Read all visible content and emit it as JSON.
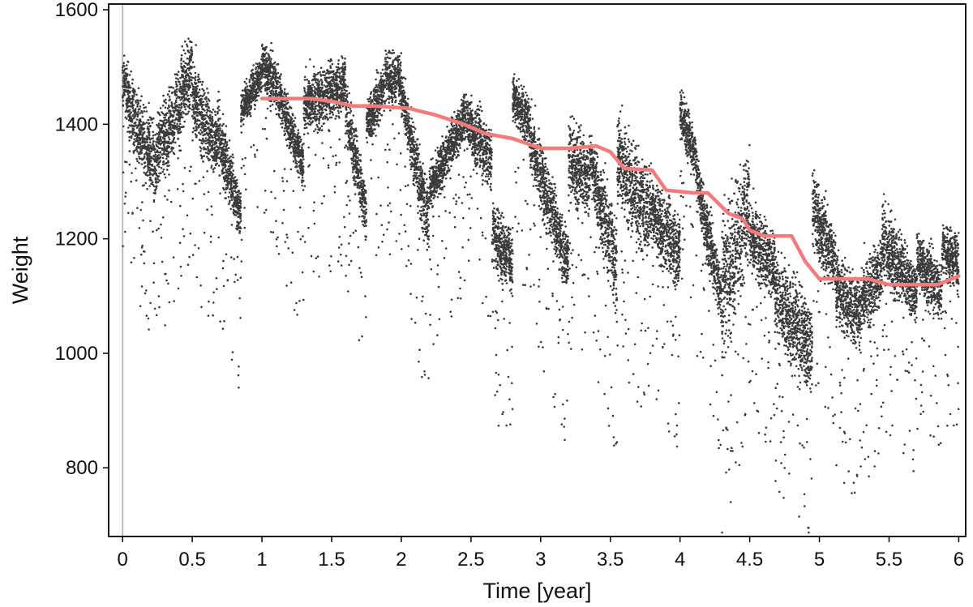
{
  "chart_data": {
    "type": "scatter",
    "title": "",
    "xlabel": "Time [year]",
    "ylabel": "Weight",
    "xlim": [
      -0.1,
      6.05
    ],
    "ylim": [
      680,
      1610
    ],
    "xticks": [
      0,
      0.5,
      1,
      1.5,
      2,
      2.5,
      3,
      3.5,
      4,
      4.5,
      5,
      5.5,
      6
    ],
    "xtick_labels": [
      "0",
      "0.5",
      "1",
      "1.5",
      "2",
      "2.5",
      "3",
      "3.5",
      "4",
      "4.5",
      "5",
      "5.5",
      "6"
    ],
    "yticks": [
      800,
      1000,
      1200,
      1400,
      1600
    ],
    "ytick_labels": [
      "800",
      "1000",
      "1200",
      "1400",
      "1600"
    ],
    "grid": false,
    "legend": "none",
    "reference_line_x": 0,
    "colors": {
      "points": "#3a3a3a",
      "trend": "#f47b7b",
      "reference": "#bbbbbb",
      "frame": "#000000"
    },
    "series": [
      {
        "kind": "scatter",
        "segments": [
          {
            "x": [
              0.0,
              0.07
            ],
            "top": [
              1550,
              1500
            ],
            "bottom": [
              1420,
              1320
            ]
          },
          {
            "x": [
              0.07,
              0.25
            ],
            "top": [
              1500,
              1420
            ],
            "bottom": [
              1320,
              1230
            ]
          },
          {
            "x": [
              0.25,
              0.42
            ],
            "top": [
              1450,
              1540
            ],
            "bottom": [
              1260,
              1330
            ]
          },
          {
            "x": [
              0.42,
              0.5
            ],
            "top": [
              1550,
              1580
            ],
            "bottom": [
              1350,
              1420
            ]
          },
          {
            "x": [
              0.5,
              0.68
            ],
            "top": [
              1560,
              1440
            ],
            "bottom": [
              1340,
              1280
            ]
          },
          {
            "x": [
              0.68,
              0.85
            ],
            "top": [
              1480,
              1310
            ],
            "bottom": [
              1300,
              1160
            ]
          },
          {
            "x": [
              0.85,
              1.0
            ],
            "top": [
              1470,
              1540
            ],
            "bottom": [
              1380,
              1440
            ]
          },
          {
            "x": [
              1.0,
              1.12
            ],
            "top": [
              1570,
              1530
            ],
            "bottom": [
              1440,
              1390
            ]
          },
          {
            "x": [
              1.12,
              1.3
            ],
            "top": [
              1510,
              1380
            ],
            "bottom": [
              1390,
              1270
            ]
          },
          {
            "x": [
              1.3,
              1.6
            ],
            "top": [
              1510,
              1550
            ],
            "bottom": [
              1360,
              1390
            ]
          },
          {
            "x": [
              1.6,
              1.75
            ],
            "top": [
              1500,
              1320
            ],
            "bottom": [
              1360,
              1160
            ]
          },
          {
            "x": [
              1.75,
              1.88
            ],
            "top": [
              1460,
              1530
            ],
            "bottom": [
              1340,
              1400
            ]
          },
          {
            "x": [
              1.88,
              2.0
            ],
            "top": [
              1560,
              1540
            ],
            "bottom": [
              1400,
              1420
            ]
          },
          {
            "x": [
              2.0,
              2.2
            ],
            "top": [
              1510,
              1320
            ],
            "bottom": [
              1400,
              1120
            ]
          },
          {
            "x": [
              2.2,
              2.45
            ],
            "top": [
              1340,
              1480
            ],
            "bottom": [
              1230,
              1340
            ]
          },
          {
            "x": [
              2.45,
              2.65
            ],
            "top": [
              1480,
              1420
            ],
            "bottom": [
              1350,
              1250
            ]
          },
          {
            "x": [
              2.65,
              2.8
            ],
            "top": [
              1300,
              1240
            ],
            "bottom": [
              1120,
              1080
            ]
          },
          {
            "x": [
              2.8,
              2.92
            ],
            "top": [
              1500,
              1470
            ],
            "bottom": [
              1390,
              1340
            ]
          },
          {
            "x": [
              2.92,
              3.2
            ],
            "top": [
              1470,
              1240
            ],
            "bottom": [
              1290,
              1060
            ]
          },
          {
            "x": [
              3.2,
              3.35
            ],
            "top": [
              1440,
              1400
            ],
            "bottom": [
              1240,
              1200
            ]
          },
          {
            "x": [
              3.35,
              3.55
            ],
            "top": [
              1420,
              1280
            ],
            "bottom": [
              1260,
              1020
            ]
          },
          {
            "x": [
              3.55,
              3.78
            ],
            "top": [
              1450,
              1360
            ],
            "bottom": [
              1230,
              1110
            ]
          },
          {
            "x": [
              3.78,
              4.0
            ],
            "top": [
              1350,
              1280
            ],
            "bottom": [
              1170,
              1060
            ]
          },
          {
            "x": [
              4.0,
              4.12
            ],
            "top": [
              1480,
              1400
            ],
            "bottom": [
              1370,
              1270
            ]
          },
          {
            "x": [
              4.12,
              4.3
            ],
            "top": [
              1380,
              1170
            ],
            "bottom": [
              1220,
              1020
            ]
          },
          {
            "x": [
              4.3,
              4.5
            ],
            "top": [
              1300,
              1400
            ],
            "bottom": [
              900,
              1130
            ]
          },
          {
            "x": [
              4.5,
              4.68
            ],
            "top": [
              1300,
              1240
            ],
            "bottom": [
              1120,
              1060
            ]
          },
          {
            "x": [
              4.68,
              4.95
            ],
            "top": [
              1210,
              1130
            ],
            "bottom": [
              1000,
              880
            ]
          },
          {
            "x": [
              4.95,
              5.12
            ],
            "top": [
              1370,
              1230
            ],
            "bottom": [
              1140,
              1080
            ]
          },
          {
            "x": [
              5.12,
              5.3
            ],
            "top": [
              1200,
              1150
            ],
            "bottom": [
              1020,
              980
            ]
          },
          {
            "x": [
              5.3,
              5.45
            ],
            "top": [
              1190,
              1230
            ],
            "bottom": [
              1000,
              1060
            ]
          },
          {
            "x": [
              5.45,
              5.7
            ],
            "top": [
              1300,
              1180
            ],
            "bottom": [
              1100,
              1020
            ]
          },
          {
            "x": [
              5.7,
              5.88
            ],
            "top": [
              1240,
              1180
            ],
            "bottom": [
              1090,
              1030
            ]
          },
          {
            "x": [
              5.88,
              6.0
            ],
            "top": [
              1250,
              1230
            ],
            "bottom": [
              1120,
              1080
            ]
          }
        ]
      },
      {
        "kind": "line",
        "x": [
          1.0,
          1.35,
          1.5,
          1.65,
          1.8,
          2.05,
          2.25,
          2.45,
          2.6,
          2.8,
          3.0,
          3.2,
          3.4,
          3.5,
          3.6,
          3.8,
          3.9,
          4.1,
          4.2,
          4.35,
          4.45,
          4.5,
          4.6,
          4.8,
          4.9,
          5.0,
          5.35,
          5.5,
          5.85,
          6.0
        ],
        "y": [
          1445,
          1445,
          1440,
          1432,
          1432,
          1428,
          1416,
          1400,
          1384,
          1375,
          1358,
          1358,
          1362,
          1352,
          1323,
          1320,
          1285,
          1280,
          1280,
          1244,
          1235,
          1215,
          1205,
          1205,
          1160,
          1130,
          1130,
          1120,
          1120,
          1135
        ]
      }
    ]
  }
}
